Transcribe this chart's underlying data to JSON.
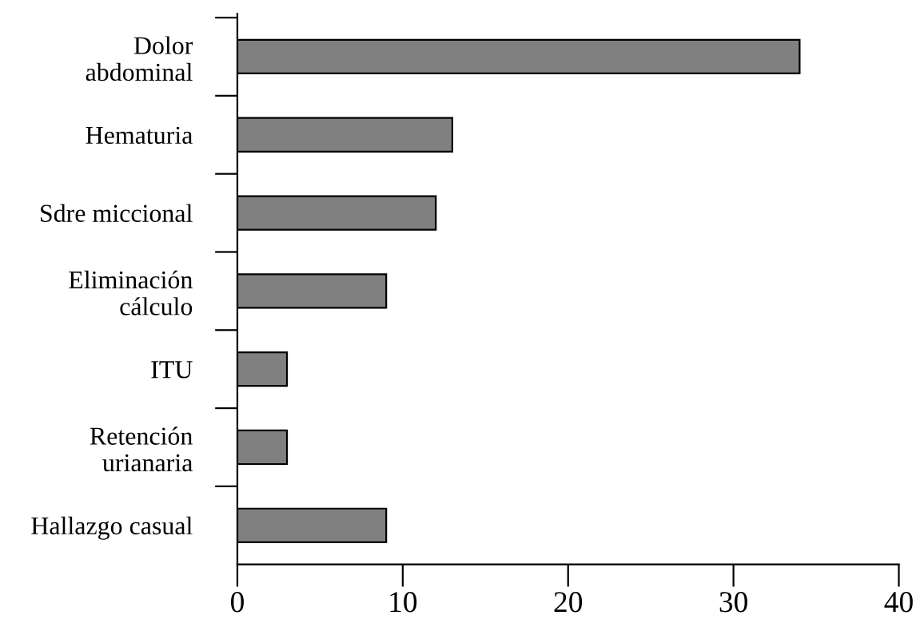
{
  "chart_data": {
    "type": "bar",
    "orientation": "horizontal",
    "categories": [
      "Dolor\nabdominal",
      "Hematuria",
      "Sdre miccional",
      "Eliminación\ncálculo",
      "ITU",
      "Retención\nurianaria",
      "Hallazgo casual"
    ],
    "values": [
      34,
      13,
      12,
      9,
      3,
      3,
      9
    ],
    "color": "#808080",
    "xlim": [
      0,
      40
    ],
    "xticks": [
      0,
      10,
      20,
      30,
      40
    ],
    "grid": false
  }
}
